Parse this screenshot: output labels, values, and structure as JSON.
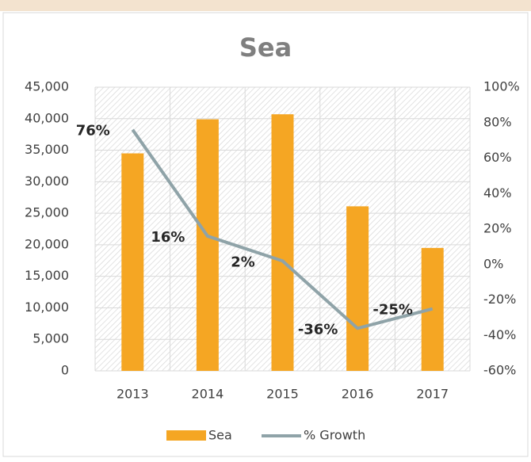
{
  "chart_data": {
    "type": "bar",
    "title": "Sea",
    "categories": [
      "2013",
      "2014",
      "2015",
      "2016",
      "2017"
    ],
    "series": [
      {
        "name": "Sea",
        "type": "bar",
        "color": "#f5a623",
        "values": [
          34500,
          39900,
          40700,
          26100,
          19500
        ]
      },
      {
        "name": "% Growth",
        "type": "line",
        "axis": "y2",
        "color": "#8fa3a8",
        "values": [
          76,
          16,
          2,
          -36,
          -25
        ],
        "value_labels": [
          "76%",
          "16%",
          "2%",
          "-36%",
          "-25%"
        ]
      }
    ],
    "ylim": [
      0,
      45000
    ],
    "yticks": [
      0,
      {
        "value": 5000,
        "label": "5,000"
      },
      {
        "value": 10000,
        "label": "10,000"
      },
      {
        "value": 15000,
        "label": "15,000"
      },
      {
        "value": 20000,
        "label": "20,000"
      },
      {
        "value": 25000,
        "label": "25,000"
      },
      {
        "value": 30000,
        "label": "30,000"
      },
      {
        "value": 35000,
        "label": "35,000"
      },
      {
        "value": 40000,
        "label": "40,000"
      },
      {
        "value": 45000,
        "label": "45,000"
      }
    ],
    "y2lim": [
      -60,
      100
    ],
    "y2ticks": [
      {
        "value": -60,
        "label": "-60%"
      },
      {
        "value": -40,
        "label": "-40%"
      },
      {
        "value": -20,
        "label": "-20%"
      },
      {
        "value": 0,
        "label": "0%"
      },
      {
        "value": 20,
        "label": "20%"
      },
      {
        "value": 40,
        "label": "40%"
      },
      {
        "value": 60,
        "label": "60%"
      },
      {
        "value": 80,
        "label": "80%"
      },
      {
        "value": 100,
        "label": "100%"
      }
    ],
    "grid": true
  }
}
